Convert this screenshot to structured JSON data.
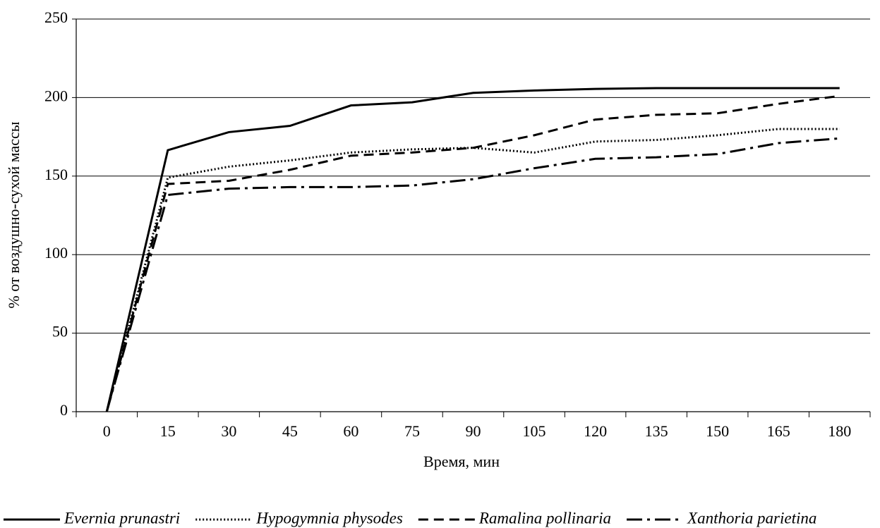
{
  "chart_data": {
    "type": "line",
    "x_label": "Время, мин",
    "y_label": "% от воздушно-сухой массы",
    "categories": [
      "0",
      "15",
      "30",
      "45",
      "60",
      "75",
      "90",
      "105",
      "120",
      "135",
      "150",
      "165",
      "180"
    ],
    "series": [
      {
        "name": "Evernia prunastri",
        "color": "#000000",
        "line_style": "solid",
        "values": [
          0,
          166.5,
          178,
          182,
          195,
          197,
          203,
          204.5,
          205.5,
          206,
          206,
          206,
          206
        ]
      },
      {
        "name": "Hypogymnia physodes",
        "color": "#000000",
        "line_style": "dotted",
        "values": [
          0,
          149,
          156,
          160,
          165,
          167,
          168,
          165,
          172,
          173,
          176,
          180,
          180
        ]
      },
      {
        "name": "Ramalina pollinaria",
        "color": "#000000",
        "line_style": "dashed",
        "values": [
          0,
          145,
          147,
          154,
          163,
          165,
          168,
          176,
          186,
          189,
          190,
          196,
          201
        ]
      },
      {
        "name": "Xanthoria parietina",
        "color": "#000000",
        "line_style": "dashdot",
        "values": [
          0,
          138,
          142,
          143,
          143,
          144,
          148,
          155,
          161,
          162,
          164,
          171,
          174
        ]
      }
    ],
    "ylim": [
      0,
      250
    ],
    "yticks": [
      0,
      50,
      100,
      150,
      200,
      250
    ],
    "grid": true,
    "legend": "bottom"
  }
}
